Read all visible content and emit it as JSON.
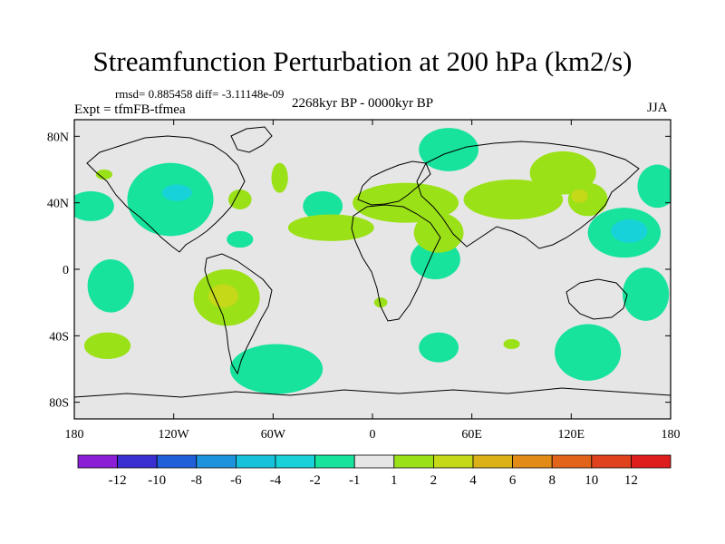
{
  "chart_data": {
    "type": "heatmap",
    "title": "Streamfunction Perturbation at 200 hPa (km2/s)",
    "stats_line": "rmsd= 0.885458 diff= -3.11148e-09",
    "center_string": "2268kyr BP - 0000kyr BP",
    "left_string": "Expt = tfmFB-tfmea",
    "right_string": "JJA",
    "x_ticks": [
      "180",
      "120W",
      "60W",
      "0",
      "60E",
      "120E",
      "180"
    ],
    "x_tick_values": [
      -180,
      -120,
      -60,
      0,
      60,
      120,
      180
    ],
    "y_ticks": [
      "80N",
      "40N",
      "0",
      "40S",
      "80S"
    ],
    "y_tick_values": [
      80,
      40,
      0,
      -40,
      -80
    ],
    "xlim": [
      -180,
      180
    ],
    "ylim": [
      -90,
      90
    ],
    "colorbar": {
      "levels": [
        "-12",
        "-10",
        "-8",
        "-6",
        "-4",
        "-2",
        "-1",
        "1",
        "2",
        "4",
        "6",
        "8",
        "10",
        "12"
      ],
      "colors": [
        "#8a1fd6",
        "#3a2fd0",
        "#1f5fd8",
        "#1e93dd",
        "#17c1dc",
        "#17d2d8",
        "#17e39c",
        "#e6e6e6",
        "#9be118",
        "#c5d918",
        "#dcb118",
        "#e28b17",
        "#e2641b",
        "#e0421e",
        "#de1d1d"
      ]
    },
    "anomaly_regions": [
      {
        "lon": -170,
        "lat": 38,
        "rlon": 14,
        "rlat": 9,
        "value": -1.5
      },
      {
        "lon": -122,
        "lat": 42,
        "rlon": 26,
        "rlat": 22,
        "value": -1.5
      },
      {
        "lon": -118,
        "lat": 46,
        "rlon": 9,
        "rlat": 5,
        "value": -2.5
      },
      {
        "lon": -162,
        "lat": 57,
        "rlon": 5,
        "rlat": 3,
        "value": 1.5
      },
      {
        "lon": -80,
        "lat": 42,
        "rlon": 7,
        "rlat": 6,
        "value": 1.5
      },
      {
        "lon": -56,
        "lat": 55,
        "rlon": 5,
        "rlat": 9,
        "value": 1.5
      },
      {
        "lon": -30,
        "lat": 38,
        "rlon": 12,
        "rlat": 9,
        "value": -1.5
      },
      {
        "lon": -80,
        "lat": 18,
        "rlon": 8,
        "rlat": 5,
        "value": -1.5
      },
      {
        "lon": -158,
        "lat": -10,
        "rlon": 14,
        "rlat": 16,
        "value": -1.5
      },
      {
        "lon": -160,
        "lat": -46,
        "rlon": 14,
        "rlat": 8,
        "value": 1.5
      },
      {
        "lon": -88,
        "lat": -17,
        "rlon": 20,
        "rlat": 17,
        "value": 1.5
      },
      {
        "lon": -90,
        "lat": -16,
        "rlon": 9,
        "rlat": 7,
        "value": 3
      },
      {
        "lon": -58,
        "lat": -60,
        "rlon": 28,
        "rlat": 15,
        "value": -1.5
      },
      {
        "lon": 5,
        "lat": -20,
        "rlon": 4,
        "rlat": 3,
        "value": 1.5
      },
      {
        "lon": 46,
        "lat": 72,
        "rlon": 18,
        "rlat": 13,
        "value": -1.5
      },
      {
        "lon": 38,
        "lat": 6,
        "rlon": 15,
        "rlat": 12,
        "value": -1.5
      },
      {
        "lon": 40,
        "lat": -47,
        "rlon": 12,
        "rlat": 9,
        "value": -1.5
      },
      {
        "lon": 84,
        "lat": -45,
        "rlon": 5,
        "rlat": 3,
        "value": 1.5
      },
      {
        "lon": 130,
        "lat": -50,
        "rlon": 20,
        "rlat": 17,
        "value": -1.5
      },
      {
        "lon": 165,
        "lat": -15,
        "rlon": 14,
        "rlat": 16,
        "value": -1.5
      },
      {
        "lon": 152,
        "lat": 22,
        "rlon": 22,
        "rlat": 15,
        "value": -1.5
      },
      {
        "lon": 155,
        "lat": 23,
        "rlon": 11,
        "rlat": 7,
        "value": -2.5
      },
      {
        "lon": 172,
        "lat": 50,
        "rlon": 12,
        "rlat": 13,
        "value": -1.5
      },
      {
        "lon": -25,
        "lat": 25,
        "rlon": 26,
        "rlat": 8,
        "value": 1.5
      },
      {
        "lon": 20,
        "lat": 40,
        "rlon": 32,
        "rlat": 12,
        "value": 1.5
      },
      {
        "lon": 40,
        "lat": 22,
        "rlon": 15,
        "rlat": 12,
        "value": 1.5
      },
      {
        "lon": 85,
        "lat": 42,
        "rlon": 30,
        "rlat": 12,
        "value": 1.5
      },
      {
        "lon": 115,
        "lat": 58,
        "rlon": 20,
        "rlat": 13,
        "value": 1.5
      },
      {
        "lon": 130,
        "lat": 42,
        "rlon": 12,
        "rlat": 10,
        "value": 1.5
      },
      {
        "lon": 125,
        "lat": 44,
        "rlon": 5,
        "rlat": 4,
        "value": 3
      }
    ]
  }
}
